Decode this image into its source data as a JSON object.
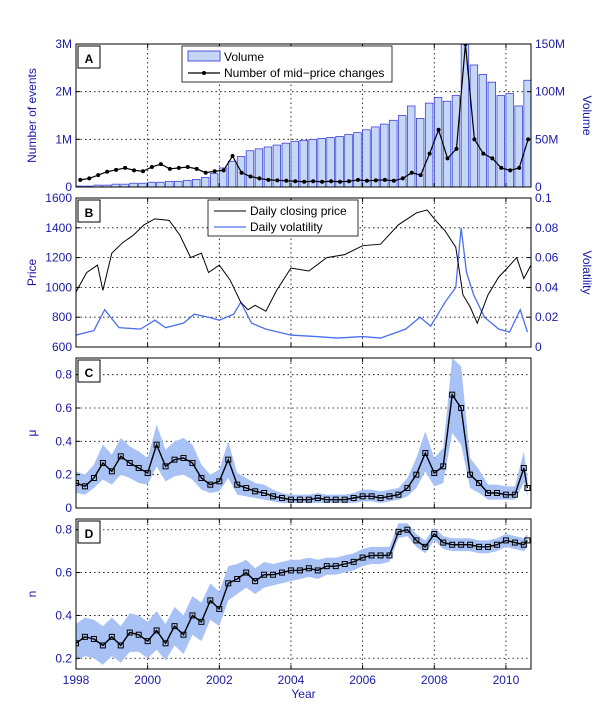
{
  "colors": {
    "band": "#a9c2f5",
    "bar": "#c5d7f7",
    "bar_edge": "#2b2bd0",
    "vol_line": "#4a6ff0",
    "black": "#000000",
    "axis_text": "#1a1aa6"
  },
  "xlabel": "Year",
  "chart_data": [
    {
      "type": "bar",
      "panel": "A",
      "ylabel": "Number of events",
      "y2label": "Volume",
      "ylim": [
        0,
        3000000
      ],
      "y2lim": [
        0,
        150000000
      ],
      "yticks": [
        "0",
        "1M",
        "2M",
        "3M"
      ],
      "y2ticks": [
        "0",
        "50M",
        "100M",
        "150M"
      ],
      "legend": [
        "Volume",
        "Number of mid−price changes"
      ],
      "legend_position": "top-center",
      "series": [
        {
          "name": "Volume",
          "axis": "right",
          "type": "bar",
          "x": [
            1998.0,
            1998.25,
            1998.5,
            1998.75,
            1999.0,
            1999.25,
            1999.5,
            1999.75,
            2000.0,
            2000.25,
            2000.5,
            2000.75,
            2001.0,
            2001.25,
            2001.5,
            2001.75,
            2002.0,
            2002.25,
            2002.5,
            2002.75,
            2003.0,
            2003.25,
            2003.5,
            2003.75,
            2004.0,
            2004.25,
            2004.5,
            2004.75,
            2005.0,
            2005.25,
            2005.5,
            2005.75,
            2006.0,
            2006.25,
            2006.5,
            2006.75,
            2007.0,
            2007.25,
            2007.5,
            2007.75,
            2008.0,
            2008.25,
            2008.5,
            2008.75,
            2009.0,
            2009.25,
            2009.5,
            2009.75,
            2010.0,
            2010.25,
            2010.5
          ],
          "values": [
            1,
            1,
            2,
            2,
            3,
            3,
            4,
            4,
            5,
            5,
            6,
            6,
            7,
            8,
            10,
            14,
            20,
            27,
            32,
            38,
            40,
            42,
            44,
            46,
            48,
            49,
            50,
            51,
            52,
            53,
            55,
            57,
            60,
            63,
            66,
            70,
            75,
            85,
            72,
            88,
            94,
            90,
            96,
            150,
            128,
            118,
            110,
            96,
            98,
            85,
            112
          ]
        },
        {
          "name": "Number of mid−price changes",
          "axis": "left",
          "type": "line",
          "x": [
            1998.0,
            1998.25,
            1998.5,
            1998.75,
            1999.0,
            1999.25,
            1999.5,
            1999.75,
            2000.0,
            2000.25,
            2000.5,
            2000.75,
            2001.0,
            2001.25,
            2001.5,
            2001.75,
            2002.0,
            2002.25,
            2002.5,
            2002.75,
            2003.0,
            2003.25,
            2003.5,
            2003.75,
            2004.0,
            2004.25,
            2004.5,
            2004.75,
            2005.0,
            2005.25,
            2005.5,
            2005.75,
            2006.0,
            2006.25,
            2006.5,
            2006.75,
            2007.0,
            2007.25,
            2007.5,
            2007.75,
            2008.0,
            2008.25,
            2008.5,
            2008.75,
            2009.0,
            2009.25,
            2009.5,
            2009.75,
            2010.0,
            2010.25,
            2010.5
          ],
          "values": [
            150000,
            180000,
            250000,
            320000,
            360000,
            400000,
            350000,
            330000,
            420000,
            480000,
            380000,
            400000,
            420000,
            380000,
            300000,
            330000,
            350000,
            650000,
            300000,
            220000,
            180000,
            150000,
            140000,
            130000,
            120000,
            110000,
            120000,
            110000,
            120000,
            110000,
            120000,
            150000,
            130000,
            140000,
            150000,
            130000,
            180000,
            300000,
            250000,
            700000,
            1200000,
            600000,
            800000,
            3000000,
            1000000,
            700000,
            600000,
            400000,
            350000,
            400000,
            1000000
          ]
        }
      ]
    },
    {
      "type": "line",
      "panel": "B",
      "ylabel": "Price",
      "y2label": "Volatility",
      "ylim": [
        600,
        1600
      ],
      "y2lim": [
        0,
        0.1
      ],
      "yticks": [
        "600",
        "800",
        "1000",
        "1200",
        "1400",
        "1600"
      ],
      "y2ticks": [
        "0",
        "0.02",
        "0.04",
        "0.06",
        "0.08",
        "0.1"
      ],
      "legend": [
        "Daily closing price",
        "Daily volatility"
      ],
      "legend_position": "top-center",
      "series": [
        {
          "name": "Daily closing price",
          "axis": "left",
          "x": [
            1998.0,
            1998.3,
            1998.6,
            1998.75,
            1999.0,
            1999.3,
            1999.6,
            1999.9,
            2000.2,
            2000.6,
            2000.9,
            2001.2,
            2001.5,
            2001.7,
            2002.0,
            2002.3,
            2002.6,
            2002.8,
            2003.0,
            2003.3,
            2003.6,
            2004.0,
            2004.5,
            2005.0,
            2005.5,
            2006.0,
            2006.5,
            2007.0,
            2007.5,
            2007.8,
            2008.0,
            2008.3,
            2008.6,
            2008.8,
            2009.0,
            2009.2,
            2009.5,
            2009.8,
            2010.0,
            2010.3,
            2010.5,
            2010.7
          ],
          "values": [
            970,
            1100,
            1150,
            980,
            1230,
            1300,
            1350,
            1420,
            1460,
            1450,
            1350,
            1200,
            1230,
            1100,
            1150,
            1050,
            900,
            850,
            880,
            840,
            980,
            1130,
            1110,
            1200,
            1220,
            1280,
            1290,
            1420,
            1500,
            1520,
            1460,
            1380,
            1270,
            950,
            870,
            760,
            950,
            1070,
            1120,
            1200,
            1060,
            1150
          ]
        },
        {
          "name": "Daily volatility",
          "axis": "right",
          "x": [
            1998.0,
            1998.5,
            1998.8,
            1999.2,
            1999.8,
            2000.2,
            2000.5,
            2001.0,
            2001.3,
            2001.7,
            2002.0,
            2002.4,
            2002.6,
            2002.9,
            2003.3,
            2004.0,
            2004.7,
            2005.3,
            2006.0,
            2006.5,
            2007.2,
            2007.6,
            2007.9,
            2008.3,
            2008.6,
            2008.75,
            2008.9,
            2009.1,
            2009.4,
            2009.8,
            2010.1,
            2010.4,
            2010.6
          ],
          "values": [
            0.008,
            0.011,
            0.025,
            0.013,
            0.012,
            0.018,
            0.013,
            0.016,
            0.022,
            0.02,
            0.018,
            0.022,
            0.03,
            0.016,
            0.012,
            0.008,
            0.007,
            0.006,
            0.007,
            0.006,
            0.012,
            0.02,
            0.014,
            0.03,
            0.04,
            0.08,
            0.05,
            0.035,
            0.02,
            0.012,
            0.01,
            0.025,
            0.01
          ]
        }
      ]
    },
    {
      "type": "line",
      "panel": "C",
      "ylabel": "μ",
      "ylim": [
        0,
        0.9
      ],
      "yticks": [
        "0",
        "0.2",
        "0.4",
        "0.6",
        "0.8"
      ],
      "x": [
        1998.0,
        1998.25,
        1998.5,
        1998.75,
        1999.0,
        1999.25,
        1999.5,
        1999.75,
        2000.0,
        2000.25,
        2000.5,
        2000.75,
        2001.0,
        2001.25,
        2001.5,
        2001.75,
        2002.0,
        2002.25,
        2002.5,
        2002.75,
        2003.0,
        2003.25,
        2003.5,
        2003.75,
        2004.0,
        2004.25,
        2004.5,
        2004.75,
        2005.0,
        2005.25,
        2005.5,
        2005.75,
        2006.0,
        2006.25,
        2006.5,
        2006.75,
        2007.0,
        2007.25,
        2007.5,
        2007.75,
        2008.0,
        2008.25,
        2008.5,
        2008.75,
        2009.0,
        2009.25,
        2009.5,
        2009.75,
        2010.0,
        2010.25,
        2010.5,
        2010.6
      ],
      "series": [
        {
          "name": "",
          "type": "line-band",
          "values": [
            0.15,
            0.13,
            0.18,
            0.27,
            0.22,
            0.31,
            0.27,
            0.24,
            0.21,
            0.38,
            0.25,
            0.29,
            0.3,
            0.27,
            0.18,
            0.14,
            0.16,
            0.29,
            0.14,
            0.12,
            0.1,
            0.09,
            0.07,
            0.06,
            0.05,
            0.05,
            0.05,
            0.06,
            0.05,
            0.05,
            0.05,
            0.06,
            0.07,
            0.07,
            0.06,
            0.07,
            0.08,
            0.12,
            0.2,
            0.33,
            0.21,
            0.25,
            0.68,
            0.6,
            0.2,
            0.15,
            0.09,
            0.09,
            0.08,
            0.08,
            0.24,
            0.12
          ],
          "lower": [
            0.09,
            0.08,
            0.12,
            0.17,
            0.14,
            0.2,
            0.18,
            0.15,
            0.14,
            0.25,
            0.16,
            0.19,
            0.2,
            0.17,
            0.11,
            0.09,
            0.1,
            0.18,
            0.08,
            0.07,
            0.06,
            0.05,
            0.04,
            0.03,
            0.03,
            0.03,
            0.03,
            0.03,
            0.03,
            0.03,
            0.03,
            0.03,
            0.04,
            0.04,
            0.03,
            0.04,
            0.05,
            0.07,
            0.12,
            0.22,
            0.13,
            0.15,
            0.45,
            0.38,
            0.12,
            0.09,
            0.05,
            0.05,
            0.05,
            0.05,
            0.15,
            0.07
          ],
          "upper": [
            0.22,
            0.2,
            0.26,
            0.38,
            0.32,
            0.42,
            0.37,
            0.34,
            0.3,
            0.5,
            0.35,
            0.4,
            0.42,
            0.38,
            0.26,
            0.2,
            0.23,
            0.4,
            0.21,
            0.18,
            0.15,
            0.14,
            0.11,
            0.09,
            0.08,
            0.08,
            0.08,
            0.09,
            0.08,
            0.08,
            0.08,
            0.09,
            0.11,
            0.11,
            0.1,
            0.11,
            0.12,
            0.18,
            0.3,
            0.46,
            0.3,
            0.36,
            0.9,
            0.85,
            0.3,
            0.23,
            0.14,
            0.14,
            0.13,
            0.13,
            0.34,
            0.18
          ]
        }
      ]
    },
    {
      "type": "line",
      "panel": "D",
      "ylabel": "n",
      "ylim": [
        0.15,
        0.85
      ],
      "yticks": [
        "0.2",
        "0.4",
        "0.6",
        "0.8"
      ],
      "x": [
        1998.0,
        1998.25,
        1998.5,
        1998.75,
        1999.0,
        1999.25,
        1999.5,
        1999.75,
        2000.0,
        2000.25,
        2000.5,
        2000.75,
        2001.0,
        2001.25,
        2001.5,
        2001.75,
        2002.0,
        2002.25,
        2002.5,
        2002.75,
        2003.0,
        2003.25,
        2003.5,
        2003.75,
        2004.0,
        2004.25,
        2004.5,
        2004.75,
        2005.0,
        2005.25,
        2005.5,
        2005.75,
        2006.0,
        2006.25,
        2006.5,
        2006.75,
        2007.0,
        2007.25,
        2007.5,
        2007.75,
        2008.0,
        2008.25,
        2008.5,
        2008.75,
        2009.0,
        2009.25,
        2009.5,
        2009.75,
        2010.0,
        2010.25,
        2010.5,
        2010.6
      ],
      "series": [
        {
          "name": "",
          "type": "line-band",
          "values": [
            0.27,
            0.3,
            0.29,
            0.26,
            0.3,
            0.26,
            0.32,
            0.31,
            0.28,
            0.33,
            0.27,
            0.35,
            0.31,
            0.4,
            0.37,
            0.47,
            0.43,
            0.55,
            0.57,
            0.6,
            0.56,
            0.59,
            0.59,
            0.6,
            0.61,
            0.61,
            0.62,
            0.61,
            0.63,
            0.63,
            0.64,
            0.65,
            0.67,
            0.68,
            0.68,
            0.68,
            0.79,
            0.8,
            0.75,
            0.72,
            0.78,
            0.74,
            0.73,
            0.73,
            0.73,
            0.72,
            0.72,
            0.73,
            0.75,
            0.74,
            0.73,
            0.75
          ],
          "lower": [
            0.19,
            0.21,
            0.2,
            0.17,
            0.21,
            0.18,
            0.23,
            0.23,
            0.2,
            0.24,
            0.19,
            0.26,
            0.22,
            0.31,
            0.28,
            0.38,
            0.35,
            0.47,
            0.5,
            0.53,
            0.5,
            0.53,
            0.54,
            0.55,
            0.56,
            0.57,
            0.58,
            0.57,
            0.59,
            0.59,
            0.6,
            0.61,
            0.63,
            0.64,
            0.64,
            0.65,
            0.76,
            0.77,
            0.72,
            0.69,
            0.75,
            0.71,
            0.7,
            0.7,
            0.7,
            0.69,
            0.69,
            0.7,
            0.72,
            0.71,
            0.7,
            0.72
          ],
          "upper": [
            0.36,
            0.39,
            0.38,
            0.35,
            0.39,
            0.35,
            0.41,
            0.4,
            0.37,
            0.42,
            0.36,
            0.44,
            0.4,
            0.49,
            0.46,
            0.55,
            0.51,
            0.63,
            0.64,
            0.66,
            0.62,
            0.65,
            0.64,
            0.65,
            0.66,
            0.66,
            0.67,
            0.66,
            0.67,
            0.67,
            0.68,
            0.69,
            0.71,
            0.72,
            0.72,
            0.72,
            0.83,
            0.83,
            0.78,
            0.75,
            0.81,
            0.77,
            0.76,
            0.76,
            0.76,
            0.75,
            0.75,
            0.76,
            0.78,
            0.77,
            0.76,
            0.78
          ]
        }
      ]
    }
  ],
  "xlim": [
    1998,
    2010.7
  ],
  "xticks": [
    "1998",
    "2000",
    "2002",
    "2004",
    "2006",
    "2008",
    "2010"
  ]
}
